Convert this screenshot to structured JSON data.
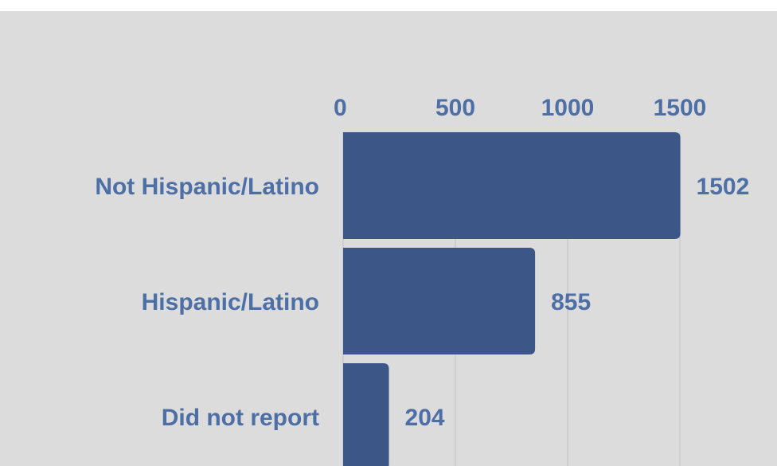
{
  "chart_data": {
    "type": "bar",
    "orientation": "horizontal",
    "categories": [
      "Not Hispanic/Latino",
      "Hispanic/Latino",
      "Did not report"
    ],
    "values": [
      1502,
      855,
      204
    ],
    "xticks": [
      0,
      500,
      1000,
      1500
    ],
    "xlim": [
      0,
      1500
    ],
    "axis_position": "top",
    "grid": true,
    "bar_color": "#3d5688",
    "label_color": "#4d6fa6",
    "background_color": "#dcdcdc",
    "grid_color": "#c6c9cf"
  }
}
